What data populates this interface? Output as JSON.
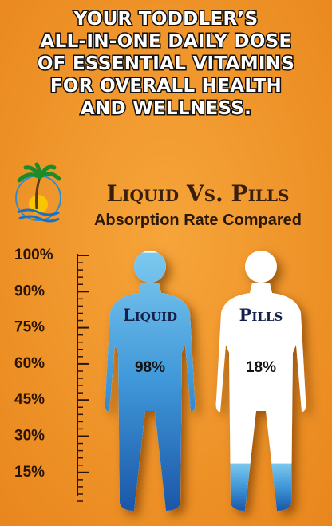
{
  "headline": [
    "YOUR TODDLER’S",
    "ALL-IN-ONE DAILY DOSE",
    "OF ESSENTIAL VITAMINS",
    "FOR OVERALL HEALTH",
    "AND WELLNESS."
  ],
  "title": "Liquid Vs. Pills",
  "subtitle": "Absorption Rate Compared",
  "scale": [
    "100%",
    "90%",
    "75%",
    "60%",
    "45%",
    "30%",
    "15%"
  ],
  "figures": [
    {
      "label": "Liquid",
      "value": 98,
      "value_label": "98%"
    },
    {
      "label": "Pills",
      "value": 18,
      "value_label": "18%"
    }
  ]
}
